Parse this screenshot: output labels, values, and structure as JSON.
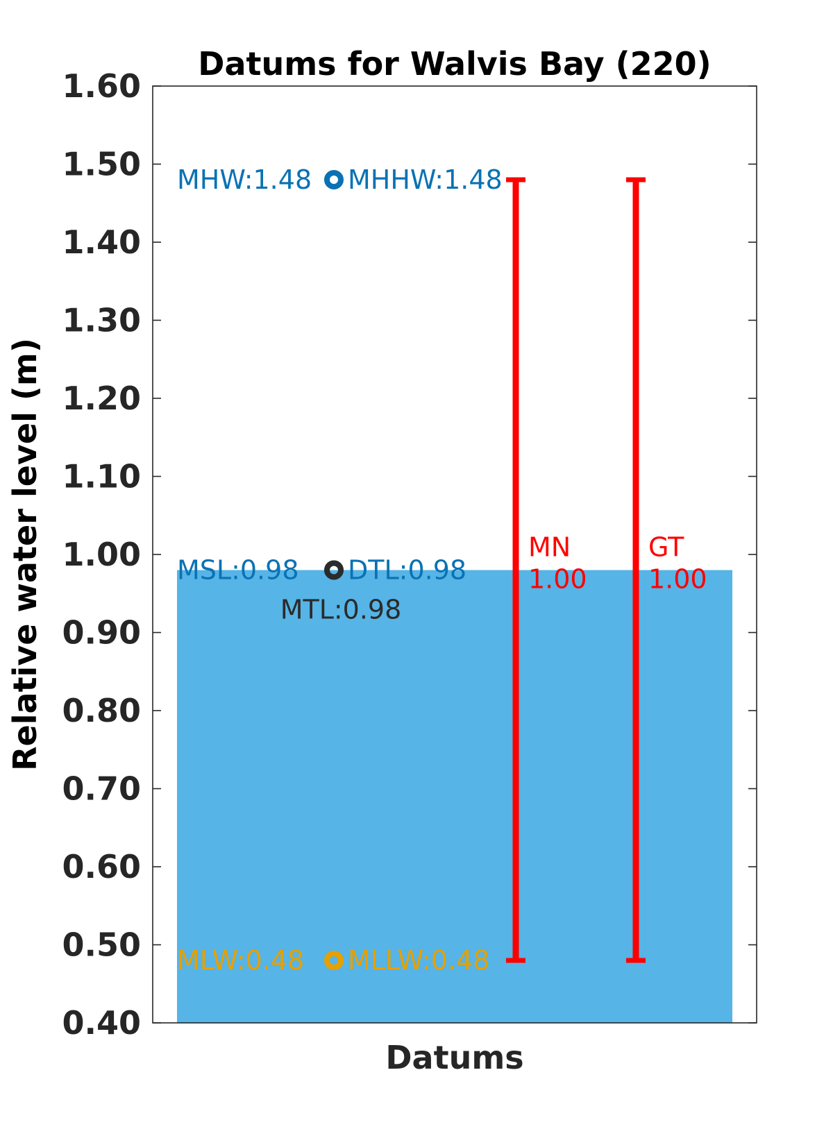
{
  "chart_data": {
    "type": "bar",
    "title": "Datums for Walvis Bay (220)",
    "xlabel": "Datums",
    "ylabel": "Relative water level (m)",
    "ylim": [
      0.4,
      1.6
    ],
    "yticks": [
      "0.40",
      "0.50",
      "0.60",
      "0.70",
      "0.80",
      "0.90",
      "1.00",
      "1.10",
      "1.20",
      "1.30",
      "1.40",
      "1.50",
      "1.60"
    ],
    "grid": false,
    "bar": {
      "value": 0.98,
      "color": "#56b4e6"
    },
    "datums": [
      {
        "name": "MHW",
        "label": "MHW:1.48",
        "value": 1.48,
        "color": "#0a72b4",
        "side": "left"
      },
      {
        "name": "MHHW",
        "label": "MHHW:1.48",
        "value": 1.48,
        "color": "#0a72b4",
        "side": "right"
      },
      {
        "name": "MSL",
        "label": "MSL:0.98",
        "value": 0.98,
        "color": "#0a72b4",
        "side": "left"
      },
      {
        "name": "DTL",
        "label": "DTL:0.98",
        "value": 0.98,
        "color": "#0a72b4",
        "side": "right"
      },
      {
        "name": "MTL",
        "label": "MTL:0.98",
        "value": 0.98,
        "color": "#2b2b2b",
        "side": "below"
      },
      {
        "name": "MLW",
        "label": "MLW:0.48",
        "value": 0.48,
        "color": "#e6a000",
        "side": "left"
      },
      {
        "name": "MLLW",
        "label": "MLLW:0.48",
        "value": 0.48,
        "color": "#e6a000",
        "side": "right"
      }
    ],
    "ranges": [
      {
        "name": "MN",
        "value_text": "1.00",
        "low": 0.48,
        "high": 1.48,
        "color": "#ff0000"
      },
      {
        "name": "GT",
        "value_text": "1.00",
        "low": 0.48,
        "high": 1.48,
        "color": "#ff0000"
      }
    ]
  }
}
